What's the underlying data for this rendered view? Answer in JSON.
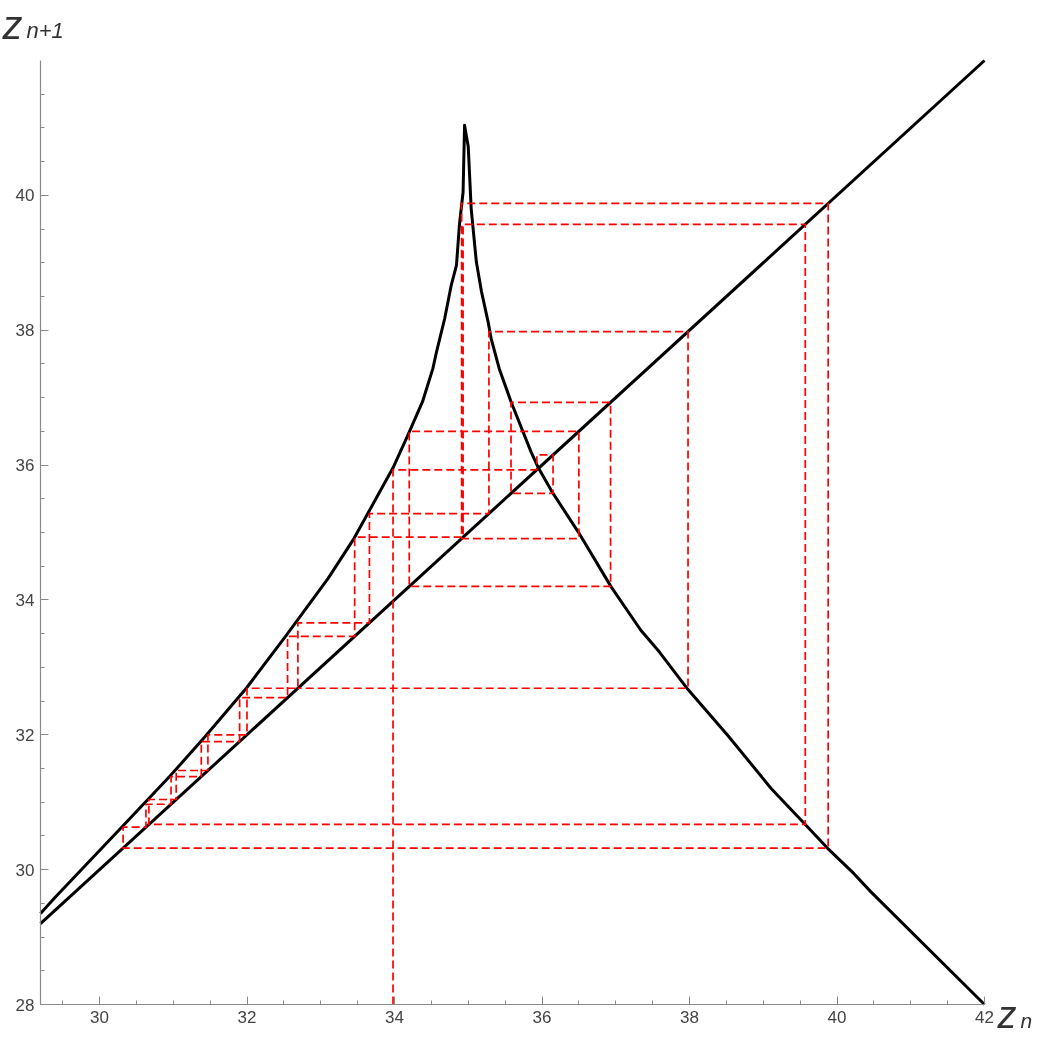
{
  "chart_data": {
    "type": "line",
    "xlabel": "z$_{n}$",
    "ylabel": "z$_{n+1}$",
    "xlim": [
      29.2,
      42
    ],
    "ylim": [
      28,
      42
    ],
    "xticks": [
      {
        "value": 29.5,
        "label": null
      },
      30,
      {
        "value": 30.5,
        "label": null
      },
      {
        "value": 31,
        "label": null
      },
      {
        "value": 31.5,
        "label": null
      },
      32,
      {
        "value": 32.5,
        "label": null
      },
      {
        "value": 33,
        "label": null
      },
      {
        "value": 33.5,
        "label": null
      },
      34,
      {
        "value": 34.5,
        "label": null
      },
      {
        "value": 35,
        "label": null
      },
      {
        "value": 35.5,
        "label": null
      },
      36,
      {
        "value": 36.5,
        "label": null
      },
      {
        "value": 37,
        "label": null
      },
      {
        "value": 37.5,
        "label": null
      },
      38,
      {
        "value": 38.5,
        "label": null
      },
      {
        "value": 39,
        "label": null
      },
      {
        "value": 39.5,
        "label": null
      },
      40,
      {
        "value": 40.5,
        "label": null
      },
      {
        "value": 41,
        "label": null
      },
      {
        "value": 41.5,
        "label": null
      },
      42
    ],
    "yticks": [
      28,
      {
        "value": 28.5,
        "label": null
      },
      {
        "value": 29,
        "label": null
      },
      {
        "value": 29.5,
        "label": null
      },
      30,
      {
        "value": 30.5,
        "label": null
      },
      {
        "value": 31,
        "label": null
      },
      {
        "value": 31.5,
        "label": null
      },
      32,
      {
        "value": 32.5,
        "label": null
      },
      {
        "value": 33,
        "label": null
      },
      {
        "value": 33.5,
        "label": null
      },
      34,
      {
        "value": 34.5,
        "label": null
      },
      {
        "value": 35,
        "label": null
      },
      {
        "value": 35.5,
        "label": null
      },
      36,
      {
        "value": 36.5,
        "label": null
      },
      {
        "value": 37,
        "label": null
      },
      {
        "value": 37.5,
        "label": null
      },
      38,
      {
        "value": 38.5,
        "label": null
      },
      {
        "value": 39,
        "label": null
      },
      {
        "value": 39.5,
        "label": null
      },
      40,
      {
        "value": 40.5,
        "label": null
      },
      {
        "value": 41,
        "label": null
      },
      {
        "value": 41.5,
        "label": null
      }
    ],
    "series": [
      {
        "color": "#000000",
        "line_style": "solid",
        "x": [
          29.2,
          29.39,
          30.31,
          30.95,
          31.43,
          31.99,
          32.53,
          33.1,
          33.45,
          33.98,
          34.18,
          34.38,
          34.52,
          34.57,
          34.68,
          34.77,
          34.84,
          34.88,
          34.93,
          34.95,
          35.0,
          35.04,
          35.11,
          35.18,
          35.27,
          35.31,
          35.42,
          35.58,
          35.85,
          35.95,
          36.15,
          36.49,
          36.94,
          37.34,
          37.59,
          37.98,
          38.52,
          39.11,
          39.57,
          39.87,
          40.23,
          40.46,
          42
        ],
        "values": [
          29.35,
          29.58,
          30.64,
          31.38,
          31.97,
          32.69,
          33.47,
          34.32,
          34.91,
          35.96,
          36.44,
          36.94,
          37.43,
          37.68,
          38.17,
          38.67,
          38.96,
          39.56,
          40.05,
          41.04,
          40.72,
          39.8,
          39.01,
          38.57,
          38.12,
          37.88,
          37.43,
          36.94,
          36.2,
          35.96,
          35.58,
          35.01,
          34.19,
          33.55,
          33.23,
          32.67,
          31.99,
          31.2,
          30.67,
          30.32,
          29.94,
          29.67,
          28
        ]
      },
      {
        "color": "#000000",
        "line_style": "solid",
        "x": [
          29.2,
          42
        ],
        "values": [
          29.2,
          42
        ]
      },
      {
        "color": "#ff0000",
        "line_style": "dashed",
        "x": [
          33.98,
          33.98,
          35.93,
          35.93,
          36.15,
          36.15,
          35.58,
          35.58,
          36.93,
          36.93,
          34.2,
          34.2,
          36.5,
          36.5,
          34.91,
          34.91,
          39.88,
          39.88,
          30.32,
          30.32,
          30.63,
          30.63,
          30.97,
          30.97,
          31.38,
          31.38,
          31.9,
          31.9,
          32.55,
          32.55,
          33.46,
          33.46,
          34.93,
          34.93,
          39.57,
          39.57,
          30.67,
          30.67,
          31.04,
          31.04,
          31.47,
          31.47,
          32,
          32,
          32.69,
          32.69,
          33.66,
          33.66,
          35.28,
          35.28,
          37.98,
          37.98,
          32.69
        ],
        "values": [
          28,
          35.93,
          35.93,
          36.15,
          36.15,
          35.58,
          35.58,
          36.93,
          36.93,
          34.2,
          34.2,
          36.5,
          36.5,
          34.91,
          34.91,
          39.88,
          39.88,
          30.32,
          30.32,
          30.63,
          30.63,
          30.97,
          30.97,
          31.38,
          31.38,
          31.9,
          31.9,
          32.55,
          32.55,
          33.46,
          33.46,
          34.93,
          34.93,
          39.57,
          39.57,
          30.67,
          30.67,
          31.04,
          31.04,
          31.47,
          31.47,
          32,
          32,
          32.69,
          32.69,
          33.66,
          33.66,
          35.28,
          35.28,
          37.98,
          37.98,
          32.69,
          32.69
        ]
      }
    ]
  }
}
